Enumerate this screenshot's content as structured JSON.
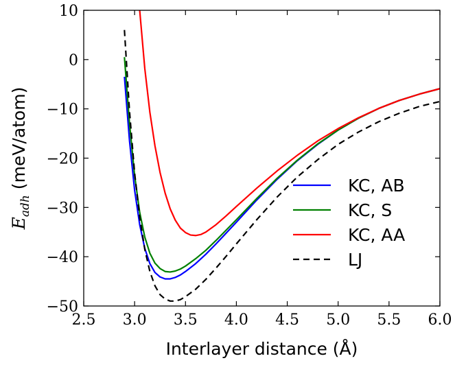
{
  "chart_data": {
    "type": "line",
    "xlabel": "Interlayer distance (Å)",
    "ylabel": {
      "symbol": "E",
      "subscript": "adh",
      "unit": "(meV/atom)"
    },
    "xlim": [
      2.5,
      6.0
    ],
    "ylim": [
      -50,
      10
    ],
    "xticks": [
      2.5,
      3.0,
      3.5,
      4.0,
      4.5,
      5.0,
      5.5,
      6.0
    ],
    "yticks": [
      -50,
      -40,
      -30,
      -20,
      -10,
      0,
      10
    ],
    "xtick_labels": [
      "2.5",
      "3.0",
      "3.5",
      "4.0",
      "4.5",
      "5.0",
      "5.5",
      "6.0"
    ],
    "ytick_labels": [
      "−50",
      "−40",
      "−30",
      "−20",
      "−10",
      "0",
      "10"
    ],
    "grid": false,
    "legend_position": "center-right",
    "series": [
      {
        "name": "KC, AB",
        "color": "#0000ff",
        "dash": "solid",
        "x": [
          2.9,
          2.95,
          3.0,
          3.05,
          3.1,
          3.15,
          3.2,
          3.25,
          3.3,
          3.35,
          3.4,
          3.45,
          3.5,
          3.6,
          3.7,
          3.8,
          3.9,
          4.0,
          4.2,
          4.4,
          4.6,
          4.8,
          5.0,
          5.2,
          5.4,
          5.6,
          5.8,
          6.0
        ],
        "y": [
          -3.5,
          -16.5,
          -26.5,
          -33.5,
          -38.3,
          -41.4,
          -43.2,
          -44.1,
          -44.5,
          -44.5,
          -44.2,
          -43.7,
          -43.0,
          -41.4,
          -39.5,
          -37.4,
          -35.2,
          -33.0,
          -28.5,
          -24.3,
          -20.5,
          -17.2,
          -14.3,
          -11.9,
          -9.9,
          -8.3,
          -7.0,
          -5.9
        ]
      },
      {
        "name": "KC, S",
        "color": "#008000",
        "dash": "solid",
        "x": [
          2.9,
          2.95,
          3.0,
          3.05,
          3.1,
          3.15,
          3.2,
          3.25,
          3.3,
          3.35,
          3.4,
          3.45,
          3.5,
          3.6,
          3.7,
          3.8,
          3.9,
          4.0,
          4.2,
          4.4,
          4.6,
          4.8,
          5.0,
          5.2,
          5.4,
          5.6,
          5.8,
          6.0
        ],
        "y": [
          0.5,
          -13.0,
          -23.5,
          -31.0,
          -36.0,
          -39.3,
          -41.3,
          -42.4,
          -43.0,
          -43.1,
          -42.9,
          -42.5,
          -41.9,
          -40.4,
          -38.7,
          -36.7,
          -34.6,
          -32.5,
          -28.2,
          -24.1,
          -20.4,
          -17.1,
          -14.3,
          -11.9,
          -9.9,
          -8.3,
          -7.0,
          -5.9
        ]
      },
      {
        "name": "KC, AA",
        "color": "#ff0000",
        "dash": "solid",
        "x": [
          3.05,
          3.1,
          3.15,
          3.2,
          3.25,
          3.3,
          3.35,
          3.4,
          3.45,
          3.5,
          3.55,
          3.6,
          3.65,
          3.7,
          3.8,
          3.9,
          4.0,
          4.2,
          4.4,
          4.6,
          4.8,
          5.0,
          5.2,
          5.4,
          5.6,
          5.8,
          6.0
        ],
        "y": [
          10.0,
          -1.8,
          -10.7,
          -17.5,
          -22.9,
          -27.1,
          -30.3,
          -32.6,
          -34.2,
          -35.1,
          -35.6,
          -35.7,
          -35.5,
          -35.0,
          -33.5,
          -31.7,
          -29.8,
          -26.1,
          -22.6,
          -19.4,
          -16.5,
          -14.0,
          -11.8,
          -9.9,
          -8.3,
          -7.0,
          -5.9
        ]
      },
      {
        "name": "LJ",
        "color": "#000000",
        "dash": "dashed",
        "x": [
          2.9,
          2.95,
          3.0,
          3.05,
          3.1,
          3.15,
          3.2,
          3.25,
          3.3,
          3.35,
          3.4,
          3.45,
          3.5,
          3.6,
          3.7,
          3.8,
          3.9,
          4.0,
          4.2,
          4.4,
          4.6,
          4.8,
          5.0,
          5.2,
          5.4,
          5.6,
          5.8,
          6.0
        ],
        "y": [
          6.0,
          -10.5,
          -23.0,
          -32.0,
          -38.5,
          -43.0,
          -45.9,
          -47.7,
          -48.6,
          -49.0,
          -49.0,
          -48.7,
          -48.1,
          -46.6,
          -44.6,
          -42.3,
          -39.9,
          -37.4,
          -32.5,
          -27.9,
          -23.8,
          -20.3,
          -17.2,
          -14.7,
          -12.6,
          -10.9,
          -9.5,
          -8.5
        ]
      }
    ]
  }
}
